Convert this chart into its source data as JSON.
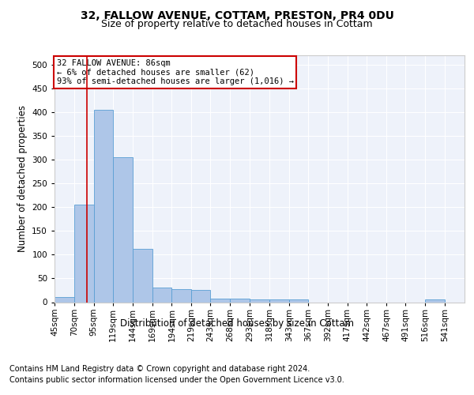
{
  "title": "32, FALLOW AVENUE, COTTAM, PRESTON, PR4 0DU",
  "subtitle": "Size of property relative to detached houses in Cottam",
  "xlabel": "Distribution of detached houses by size in Cottam",
  "ylabel": "Number of detached properties",
  "footer_line1": "Contains HM Land Registry data © Crown copyright and database right 2024.",
  "footer_line2": "Contains public sector information licensed under the Open Government Licence v3.0.",
  "bins": [
    "45sqm",
    "70sqm",
    "95sqm",
    "119sqm",
    "144sqm",
    "169sqm",
    "194sqm",
    "219sqm",
    "243sqm",
    "268sqm",
    "293sqm",
    "318sqm",
    "343sqm",
    "367sqm",
    "392sqm",
    "417sqm",
    "442sqm",
    "467sqm",
    "491sqm",
    "516sqm",
    "541sqm"
  ],
  "values": [
    10,
    205,
    405,
    305,
    112,
    30,
    27,
    26,
    8,
    8,
    6,
    5,
    5,
    0,
    0,
    0,
    0,
    0,
    0,
    5,
    0
  ],
  "bin_edges": [
    45,
    70,
    95,
    119,
    144,
    169,
    194,
    219,
    243,
    268,
    293,
    318,
    343,
    367,
    392,
    417,
    442,
    467,
    491,
    516,
    541,
    566
  ],
  "bar_color": "#aec6e8",
  "bar_edge_color": "#5a9fd4",
  "property_size": 86,
  "vline_color": "#cc0000",
  "annotation_line1": "32 FALLOW AVENUE: 86sqm",
  "annotation_line2": "← 6% of detached houses are smaller (62)",
  "annotation_line3": "93% of semi-detached houses are larger (1,016) →",
  "annotation_box_color": "#cc0000",
  "ylim": [
    0,
    520
  ],
  "yticks": [
    0,
    50,
    100,
    150,
    200,
    250,
    300,
    350,
    400,
    450,
    500
  ],
  "bg_color": "#eef2fa",
  "title_fontsize": 10,
  "subtitle_fontsize": 9,
  "axis_label_fontsize": 8.5,
  "tick_fontsize": 7.5,
  "footer_fontsize": 7,
  "annotation_fontsize": 7.5
}
